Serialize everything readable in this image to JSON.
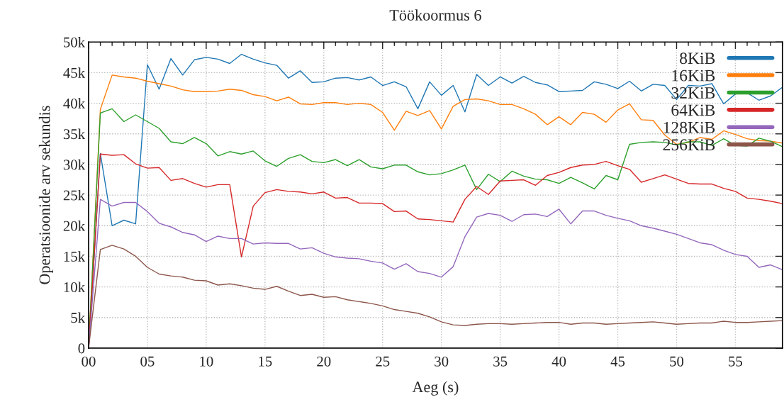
{
  "chart_data": {
    "type": "line",
    "title": "Töökoormus 6",
    "xlabel": "Aeg (s)",
    "ylabel": "Operatsioonide arv sekundis",
    "x": [
      0,
      1,
      2,
      3,
      4,
      5,
      6,
      7,
      8,
      9,
      10,
      11,
      12,
      13,
      14,
      15,
      16,
      17,
      18,
      19,
      20,
      21,
      22,
      23,
      24,
      25,
      26,
      27,
      28,
      29,
      30,
      31,
      32,
      33,
      34,
      35,
      36,
      37,
      38,
      39,
      40,
      41,
      42,
      43,
      44,
      45,
      46,
      47,
      48,
      49,
      50,
      51,
      52,
      53,
      54,
      55,
      56,
      57,
      58,
      59
    ],
    "series": [
      {
        "name": "8KiB",
        "color": "#1f77b4",
        "values": [
          0,
          31800,
          20000,
          20900,
          20300,
          46300,
          42300,
          47300,
          44600,
          47100,
          47500,
          47200,
          46500,
          48000,
          47200,
          46600,
          46200,
          44100,
          45300,
          43400,
          43500,
          44100,
          44200,
          43800,
          44300,
          42900,
          43500,
          42700,
          39100,
          43500,
          41300,
          42900,
          38600,
          44700,
          42900,
          44300,
          43300,
          44400,
          43400,
          43000,
          41900,
          42000,
          42100,
          43500,
          43100,
          42400,
          43600,
          42000,
          43100,
          42900,
          40600,
          42900,
          42800,
          43200,
          39900,
          41500,
          41700,
          40500,
          41200,
          42600
        ]
      },
      {
        "name": "16KiB",
        "color": "#ff7f0e",
        "values": [
          0,
          39000,
          44600,
          44300,
          44100,
          43600,
          43200,
          42800,
          42200,
          41900,
          41900,
          42000,
          42300,
          42100,
          41400,
          41100,
          40400,
          41000,
          39900,
          39800,
          40100,
          40100,
          39800,
          40000,
          39800,
          38500,
          35600,
          38700,
          38000,
          38800,
          35800,
          39500,
          40600,
          40700,
          40400,
          39800,
          39800,
          39100,
          38200,
          36500,
          37800,
          36500,
          38500,
          38200,
          36900,
          38900,
          39900,
          37300,
          37200,
          34800,
          33300,
          33600,
          34400,
          34100,
          35500,
          34900,
          34200,
          33900,
          33800,
          33500
        ]
      },
      {
        "name": "32KiB",
        "color": "#2ca02c",
        "values": [
          0,
          38400,
          39100,
          37000,
          38100,
          37000,
          35900,
          33700,
          33400,
          34400,
          33400,
          31400,
          32100,
          31700,
          32200,
          30600,
          29700,
          31000,
          31600,
          30500,
          30300,
          30800,
          29800,
          30800,
          29600,
          29300,
          29900,
          29900,
          28800,
          28300,
          28500,
          29100,
          29900,
          25900,
          28400,
          27200,
          28900,
          28100,
          27600,
          27500,
          26900,
          27900,
          27000,
          26000,
          28200,
          27500,
          33300,
          33600,
          33700,
          33600,
          33200,
          33700,
          33700,
          33100,
          34200,
          33100,
          33000,
          34300,
          33800,
          32900
        ]
      },
      {
        "name": "64KiB",
        "color": "#d62728",
        "values": [
          0,
          31700,
          31500,
          31600,
          30100,
          29400,
          29500,
          27400,
          27700,
          26900,
          26300,
          26700,
          26700,
          14900,
          23200,
          25400,
          25900,
          25600,
          25500,
          25200,
          25500,
          24500,
          24600,
          23700,
          23700,
          23600,
          22300,
          22400,
          21100,
          21000,
          20800,
          20600,
          24300,
          26400,
          25100,
          27300,
          27400,
          27500,
          26600,
          28200,
          28700,
          29500,
          29900,
          30000,
          30500,
          29800,
          29200,
          27100,
          27700,
          28300,
          27600,
          26900,
          26800,
          26800,
          26100,
          25600,
          24500,
          24300,
          24000,
          23600
        ]
      },
      {
        "name": "128KiB",
        "color": "#9467bd",
        "values": [
          0,
          24300,
          23200,
          23800,
          23800,
          22300,
          20400,
          19800,
          18900,
          18500,
          17400,
          18300,
          17900,
          17900,
          17000,
          17200,
          17100,
          17100,
          16200,
          16400,
          15500,
          14900,
          14700,
          14600,
          14200,
          13900,
          12900,
          13800,
          12500,
          12200,
          11600,
          13300,
          18200,
          21400,
          22000,
          21700,
          20700,
          21800,
          21900,
          21500,
          22700,
          20300,
          22400,
          22400,
          21700,
          21200,
          20800,
          20000,
          19600,
          19100,
          18600,
          17900,
          17200,
          16900,
          16000,
          15300,
          15000,
          13200,
          13600,
          12800
        ]
      },
      {
        "name": "256KiB",
        "color": "#8c564b",
        "values": [
          0,
          16100,
          16800,
          16200,
          15000,
          13200,
          12100,
          11800,
          11600,
          11100,
          11000,
          10300,
          10500,
          10200,
          9800,
          9600,
          10100,
          9300,
          8600,
          8800,
          8300,
          8400,
          7900,
          7600,
          7300,
          6900,
          6300,
          6000,
          5700,
          5100,
          4300,
          3800,
          3700,
          3900,
          4000,
          4000,
          3900,
          4000,
          4100,
          4200,
          4200,
          3900,
          4100,
          4100,
          3900,
          4000,
          4100,
          4200,
          4300,
          4100,
          3900,
          4000,
          4100,
          4100,
          4400,
          4200,
          4200,
          4300,
          4400,
          4500
        ]
      }
    ],
    "xlim": [
      0,
      59
    ],
    "ylim": [
      0,
      50000
    ],
    "xticks": [
      {
        "value": 0,
        "label": "00"
      },
      {
        "value": 5,
        "label": "05"
      },
      10,
      15,
      20,
      25,
      30,
      35,
      40,
      45,
      50,
      55
    ],
    "yticks": [
      0,
      {
        "value": 5000,
        "label": "5k"
      },
      {
        "value": 10000,
        "label": "10k"
      },
      {
        "value": 15000,
        "label": "15k"
      },
      {
        "value": 20000,
        "label": "20k"
      },
      {
        "value": 25000,
        "label": "25k"
      },
      {
        "value": 30000,
        "label": "30k"
      },
      {
        "value": 35000,
        "label": "35k"
      },
      {
        "value": 40000,
        "label": "40k"
      },
      {
        "value": 45000,
        "label": "45k"
      },
      {
        "value": 50000,
        "label": "50k"
      }
    ],
    "grid": true,
    "legend": "top right",
    "marker": "none",
    "line_style": "solid"
  }
}
